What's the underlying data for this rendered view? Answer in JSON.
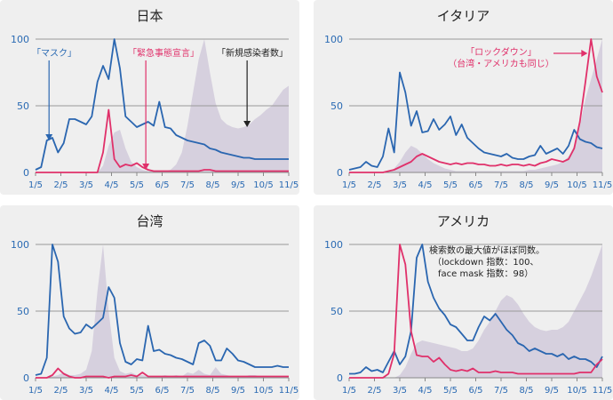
{
  "colors": {
    "mask": "#2a66b0",
    "lockdown": "#e0306a",
    "cases": "#d6d0de",
    "grid": "#9a9a9a",
    "axis": "#888888",
    "tick_label": "#2a6ab3"
  },
  "chart_data": [
    {
      "type": "line",
      "title": "日本",
      "x": [
        "1/5",
        "1/12",
        "1/19",
        "1/26",
        "2/2",
        "2/9",
        "2/16",
        "2/23",
        "3/1",
        "3/8",
        "3/15",
        "3/22",
        "3/29",
        "4/5",
        "4/12",
        "4/19",
        "4/26",
        "5/3",
        "5/10",
        "5/17",
        "5/24",
        "5/31",
        "6/7",
        "6/14",
        "6/21",
        "6/28",
        "7/5",
        "7/12",
        "7/19",
        "7/26",
        "8/2",
        "8/9",
        "8/16",
        "8/23",
        "8/30",
        "9/6",
        "9/13",
        "9/20",
        "9/27",
        "10/4",
        "10/11",
        "10/18",
        "10/25",
        "11/1",
        "11/8",
        "11/15"
      ],
      "x_ticks": [
        "1/5",
        "2/5",
        "3/5",
        "4/5",
        "5/5",
        "6/5",
        "7/5",
        "8/5",
        "9/5",
        "10/5",
        "11/5"
      ],
      "y_ticks": [
        0,
        50,
        100
      ],
      "ylim": [
        0,
        100
      ],
      "series": [
        {
          "name": "新規感染者数",
          "kind": "area",
          "values": [
            0,
            0,
            0,
            0,
            0,
            0,
            0,
            0,
            0,
            0,
            0,
            0,
            5,
            20,
            30,
            32,
            18,
            8,
            4,
            2,
            1,
            1,
            1,
            1,
            2,
            6,
            15,
            35,
            60,
            85,
            100,
            75,
            52,
            40,
            36,
            34,
            33,
            34,
            36,
            40,
            43,
            47,
            50,
            56,
            62,
            65
          ]
        },
        {
          "name": "マスク",
          "kind": "line",
          "values": [
            2,
            4,
            24,
            26,
            15,
            22,
            40,
            40,
            38,
            36,
            42,
            68,
            80,
            70,
            100,
            78,
            42,
            38,
            34,
            36,
            38,
            35,
            53,
            34,
            33,
            28,
            26,
            24,
            23,
            22,
            21,
            18,
            17,
            15,
            14,
            13,
            12,
            11,
            11,
            10,
            10,
            10,
            10,
            10,
            10,
            10
          ]
        },
        {
          "name": "緊急事態宣言",
          "kind": "line",
          "values": [
            0,
            0,
            0,
            0,
            0,
            0,
            0,
            0,
            0,
            0,
            0,
            0,
            15,
            47,
            10,
            4,
            6,
            5,
            7,
            4,
            2,
            1,
            1,
            1,
            1,
            1,
            1,
            1,
            1,
            1,
            2,
            2,
            1,
            1,
            1,
            1,
            1,
            1,
            1,
            1,
            1,
            1,
            1,
            1,
            1,
            1
          ]
        }
      ],
      "annotations": [
        {
          "id": "mask",
          "text": "「マスク」"
        },
        {
          "id": "emergency",
          "text": "「緊急事態宣言」"
        },
        {
          "id": "cases",
          "text": "「新規感染者数」"
        }
      ]
    },
    {
      "type": "line",
      "title": "イタリア",
      "x": [
        "1/5",
        "1/12",
        "1/19",
        "1/26",
        "2/2",
        "2/9",
        "2/16",
        "2/23",
        "3/1",
        "3/8",
        "3/15",
        "3/22",
        "3/29",
        "4/5",
        "4/12",
        "4/19",
        "4/26",
        "5/3",
        "5/10",
        "5/17",
        "5/24",
        "5/31",
        "6/7",
        "6/14",
        "6/21",
        "6/28",
        "7/5",
        "7/12",
        "7/19",
        "7/26",
        "8/2",
        "8/9",
        "8/16",
        "8/23",
        "8/30",
        "9/6",
        "9/13",
        "9/20",
        "9/27",
        "10/4",
        "10/11",
        "10/18",
        "10/25",
        "11/1",
        "11/8",
        "11/15"
      ],
      "x_ticks": [
        "1/5",
        "2/5",
        "3/5",
        "4/5",
        "5/5",
        "6/5",
        "7/5",
        "8/5",
        "9/5",
        "10/5",
        "11/5"
      ],
      "y_ticks": [
        0,
        50,
        100
      ],
      "ylim": [
        0,
        100
      ],
      "series": [
        {
          "name": "新規感染者数",
          "kind": "area",
          "values": [
            0,
            0,
            0,
            0,
            0,
            0,
            0,
            0,
            3,
            8,
            15,
            20,
            18,
            14,
            10,
            7,
            5,
            3,
            2,
            1,
            1,
            1,
            1,
            1,
            1,
            1,
            1,
            1,
            1,
            1,
            1,
            1,
            2,
            2,
            3,
            4,
            5,
            6,
            8,
            12,
            20,
            35,
            55,
            70,
            85,
            100
          ]
        },
        {
          "name": "マスク",
          "kind": "line",
          "values": [
            2,
            3,
            4,
            8,
            5,
            4,
            12,
            33,
            15,
            75,
            60,
            35,
            46,
            30,
            31,
            40,
            32,
            36,
            42,
            28,
            36,
            26,
            22,
            18,
            15,
            14,
            13,
            12,
            14,
            11,
            10,
            10,
            12,
            13,
            20,
            14,
            16,
            18,
            14,
            20,
            32,
            25,
            23,
            22,
            19,
            18
          ]
        },
        {
          "name": "ロックダウン",
          "kind": "line",
          "values": [
            0,
            0,
            0,
            0,
            0,
            0,
            0,
            1,
            2,
            4,
            6,
            8,
            12,
            14,
            12,
            10,
            8,
            7,
            6,
            7,
            6,
            7,
            7,
            6,
            6,
            5,
            5,
            6,
            5,
            6,
            6,
            5,
            6,
            5,
            7,
            8,
            10,
            9,
            8,
            10,
            18,
            38,
            68,
            100,
            72,
            60
          ]
        }
      ],
      "annotations": [
        {
          "id": "lockdown",
          "lines": [
            "「ロックダウン」",
            "（台湾・アメリカも同じ）"
          ]
        }
      ]
    },
    {
      "type": "line",
      "title": "台湾",
      "x": [
        "1/5",
        "1/12",
        "1/19",
        "1/26",
        "2/2",
        "2/9",
        "2/16",
        "2/23",
        "3/1",
        "3/8",
        "3/15",
        "3/22",
        "3/29",
        "4/5",
        "4/12",
        "4/19",
        "4/26",
        "5/3",
        "5/10",
        "5/17",
        "5/24",
        "5/31",
        "6/7",
        "6/14",
        "6/21",
        "6/28",
        "7/5",
        "7/12",
        "7/19",
        "7/26",
        "8/2",
        "8/9",
        "8/16",
        "8/23",
        "8/30",
        "9/6",
        "9/13",
        "9/20",
        "9/27",
        "10/4",
        "10/11",
        "10/18",
        "10/25",
        "11/1",
        "11/8",
        "11/15"
      ],
      "x_ticks": [
        "1/5",
        "2/5",
        "3/5",
        "4/5",
        "5/5",
        "6/5",
        "7/5",
        "8/5",
        "9/5",
        "10/5",
        "11/5"
      ],
      "y_ticks": [
        0,
        50,
        100
      ],
      "ylim": [
        0,
        100
      ],
      "series": [
        {
          "name": "新規感染者数",
          "kind": "area",
          "values": [
            0,
            0,
            0,
            1,
            2,
            4,
            2,
            2,
            3,
            6,
            20,
            65,
            100,
            50,
            15,
            5,
            3,
            4,
            2,
            2,
            1,
            1,
            1,
            2,
            1,
            2,
            1,
            4,
            3,
            6,
            3,
            2,
            8,
            3,
            2,
            1,
            1,
            1,
            2,
            2,
            1,
            1,
            1,
            1,
            1,
            1
          ]
        },
        {
          "name": "マスク",
          "kind": "line",
          "values": [
            2,
            3,
            15,
            100,
            87,
            46,
            37,
            33,
            34,
            40,
            37,
            41,
            45,
            68,
            60,
            26,
            12,
            10,
            14,
            13,
            39,
            20,
            21,
            18,
            17,
            15,
            14,
            12,
            10,
            26,
            28,
            24,
            13,
            13,
            22,
            18,
            13,
            12,
            10,
            8,
            8,
            8,
            8,
            9,
            8,
            8
          ]
        },
        {
          "name": "ロックダウン",
          "kind": "line",
          "values": [
            0,
            0,
            0,
            2,
            7,
            3,
            1,
            0,
            0,
            1,
            1,
            1,
            1,
            0,
            1,
            1,
            1,
            2,
            1,
            4,
            1,
            1,
            1,
            1,
            1,
            1,
            1,
            1,
            1,
            1,
            1,
            1,
            1,
            1,
            1,
            1,
            1,
            1,
            1,
            1,
            1,
            1,
            1,
            1,
            1,
            1
          ]
        }
      ]
    },
    {
      "type": "line",
      "title": "アメリカ",
      "x": [
        "1/5",
        "1/12",
        "1/19",
        "1/26",
        "2/2",
        "2/9",
        "2/16",
        "2/23",
        "3/1",
        "3/8",
        "3/15",
        "3/22",
        "3/29",
        "4/5",
        "4/12",
        "4/19",
        "4/26",
        "5/3",
        "5/10",
        "5/17",
        "5/24",
        "5/31",
        "6/7",
        "6/14",
        "6/21",
        "6/28",
        "7/5",
        "7/12",
        "7/19",
        "7/26",
        "8/2",
        "8/9",
        "8/16",
        "8/23",
        "8/30",
        "9/6",
        "9/13",
        "9/20",
        "9/27",
        "10/4",
        "10/11",
        "10/18",
        "10/25",
        "11/1",
        "11/8",
        "11/15"
      ],
      "x_ticks": [
        "1/5",
        "2/5",
        "3/5",
        "4/5",
        "5/5",
        "6/5",
        "7/5",
        "8/5",
        "9/5",
        "10/5",
        "11/5"
      ],
      "y_ticks": [
        0,
        50,
        100
      ],
      "ylim": [
        0,
        100
      ],
      "series": [
        {
          "name": "新規感染者数",
          "kind": "area",
          "values": [
            0,
            0,
            0,
            0,
            0,
            0,
            0,
            0,
            0,
            2,
            8,
            18,
            26,
            28,
            27,
            26,
            25,
            24,
            23,
            22,
            20,
            20,
            22,
            28,
            36,
            42,
            50,
            58,
            62,
            60,
            55,
            48,
            42,
            38,
            36,
            35,
            36,
            36,
            38,
            42,
            50,
            58,
            66,
            76,
            88,
            100
          ]
        },
        {
          "name": "マスク",
          "kind": "line",
          "values": [
            3,
            3,
            4,
            8,
            5,
            6,
            4,
            12,
            20,
            10,
            16,
            35,
            90,
            100,
            72,
            60,
            52,
            47,
            40,
            38,
            33,
            28,
            28,
            38,
            46,
            43,
            48,
            42,
            36,
            32,
            26,
            24,
            20,
            22,
            20,
            18,
            18,
            16,
            18,
            14,
            16,
            14,
            14,
            12,
            8,
            16
          ]
        },
        {
          "name": "ロックダウン",
          "kind": "line",
          "values": [
            0,
            0,
            0,
            0,
            0,
            0,
            0,
            3,
            18,
            100,
            85,
            35,
            17,
            16,
            16,
            12,
            15,
            10,
            6,
            5,
            6,
            5,
            7,
            4,
            4,
            4,
            5,
            4,
            4,
            4,
            3,
            3,
            3,
            3,
            3,
            3,
            3,
            3,
            3,
            3,
            3,
            4,
            4,
            4,
            10,
            14
          ]
        }
      ],
      "annotations": [
        {
          "id": "note",
          "lines": [
            "検索数の最大値がほぼ同数。",
            "（lockdown 指数：100、",
            "face mask 指数：98）"
          ]
        }
      ]
    }
  ]
}
